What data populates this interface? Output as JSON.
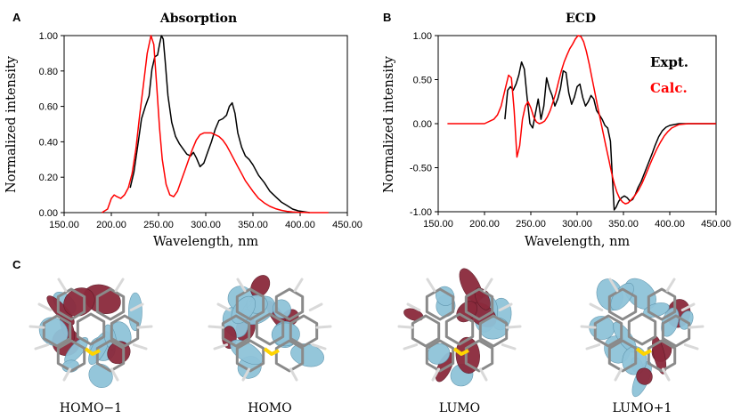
{
  "panel_letters": {
    "a": "A",
    "b": "B",
    "c": "C"
  },
  "chart_data": [
    {
      "type": "line",
      "title": "Absorption",
      "xlabel": "Wavelength, nm",
      "ylabel": "Normalized intensity",
      "xlim": [
        150,
        450
      ],
      "ylim": [
        0,
        1
      ],
      "xticks": [
        "150.00",
        "200.00",
        "250.00",
        "300.00",
        "350.00",
        "400.00",
        "450.00"
      ],
      "yticks": [
        "0.00",
        "0.20",
        "0.40",
        "0.60",
        "0.80",
        "1.00"
      ],
      "grid": false,
      "series": [
        {
          "color": "#000000",
          "x": [
            220,
            224,
            228,
            232,
            236,
            240,
            243,
            246,
            249,
            251,
            253,
            255,
            257,
            260,
            264,
            268,
            272,
            276,
            280,
            284,
            287,
            290,
            294,
            298,
            302,
            306,
            310,
            314,
            318,
            322,
            325,
            328,
            331,
            334,
            338,
            342,
            346,
            350,
            356,
            362,
            368,
            374,
            380,
            386,
            392,
            398,
            404,
            410
          ],
          "y": [
            0.14,
            0.23,
            0.38,
            0.53,
            0.6,
            0.66,
            0.81,
            0.88,
            0.89,
            0.95,
            1.0,
            0.98,
            0.86,
            0.66,
            0.51,
            0.43,
            0.39,
            0.36,
            0.33,
            0.32,
            0.34,
            0.31,
            0.26,
            0.28,
            0.34,
            0.4,
            0.47,
            0.52,
            0.53,
            0.55,
            0.6,
            0.62,
            0.56,
            0.45,
            0.37,
            0.32,
            0.3,
            0.27,
            0.21,
            0.17,
            0.12,
            0.09,
            0.06,
            0.04,
            0.02,
            0.01,
            0.005,
            0.0
          ]
        },
        {
          "color": "#ff0000",
          "x": [
            190,
            196,
            200,
            203,
            206,
            210,
            214,
            218,
            222,
            226,
            230,
            234,
            238,
            242,
            245,
            248,
            251,
            254,
            258,
            262,
            266,
            270,
            274,
            278,
            282,
            286,
            290,
            294,
            298,
            302,
            306,
            310,
            314,
            318,
            322,
            326,
            330,
            334,
            338,
            342,
            346,
            350,
            356,
            362,
            368,
            374,
            380,
            386,
            392,
            398,
            404,
            410,
            416,
            422,
            430
          ],
          "y": [
            0.0,
            0.02,
            0.08,
            0.1,
            0.09,
            0.08,
            0.1,
            0.14,
            0.22,
            0.36,
            0.55,
            0.72,
            0.9,
            1.0,
            0.95,
            0.72,
            0.48,
            0.3,
            0.16,
            0.1,
            0.09,
            0.12,
            0.18,
            0.24,
            0.3,
            0.36,
            0.41,
            0.44,
            0.45,
            0.45,
            0.45,
            0.44,
            0.43,
            0.41,
            0.38,
            0.34,
            0.3,
            0.26,
            0.22,
            0.18,
            0.15,
            0.12,
            0.08,
            0.055,
            0.035,
            0.022,
            0.013,
            0.007,
            0.004,
            0.002,
            0.001,
            0.0,
            0.0,
            0.0,
            0.0
          ]
        }
      ]
    },
    {
      "type": "line",
      "title": "ECD",
      "xlabel": "Wavelength, nm",
      "ylabel": "Normalized intensity",
      "xlim": [
        150,
        450
      ],
      "ylim": [
        -1,
        1
      ],
      "xticks": [
        "150.00",
        "200.00",
        "250.00",
        "300.00",
        "350.00",
        "400.00",
        "450.00"
      ],
      "yticks": [
        "-1.00",
        "-0.50",
        "0.00",
        "0.50",
        "1.00"
      ],
      "grid": false,
      "legend_position": "top-right",
      "series": [
        {
          "name": "Expt.",
          "color": "#000000",
          "x": [
            222,
            225,
            228,
            231,
            234,
            237,
            240,
            243,
            246,
            249,
            252,
            255,
            258,
            261,
            264,
            267,
            270,
            273,
            276,
            279,
            282,
            285,
            288,
            291,
            294,
            297,
            300,
            303,
            306,
            309,
            312,
            315,
            318,
            321,
            324,
            327,
            330,
            333,
            336,
            338,
            340,
            342,
            345,
            348,
            351,
            354,
            357,
            360,
            363,
            366,
            369,
            372,
            375,
            378,
            381,
            384,
            388,
            392,
            396,
            400,
            405,
            410,
            420,
            430,
            440,
            450
          ],
          "y": [
            0.05,
            0.38,
            0.42,
            0.38,
            0.45,
            0.55,
            0.7,
            0.62,
            0.3,
            0.0,
            -0.05,
            0.12,
            0.28,
            0.05,
            0.2,
            0.52,
            0.4,
            0.32,
            0.2,
            0.28,
            0.4,
            0.6,
            0.58,
            0.35,
            0.22,
            0.3,
            0.42,
            0.45,
            0.3,
            0.2,
            0.25,
            0.32,
            0.28,
            0.15,
            0.1,
            0.05,
            -0.02,
            -0.05,
            -0.2,
            -0.6,
            -0.98,
            -0.95,
            -0.88,
            -0.84,
            -0.82,
            -0.84,
            -0.88,
            -0.86,
            -0.8,
            -0.72,
            -0.66,
            -0.58,
            -0.5,
            -0.42,
            -0.34,
            -0.25,
            -0.15,
            -0.08,
            -0.04,
            -0.02,
            -0.01,
            0.0,
            0.0,
            0.0,
            0.0,
            0.0
          ]
        },
        {
          "name": "Calc.",
          "color": "#ff0000",
          "x": [
            160,
            180,
            200,
            210,
            214,
            218,
            222,
            226,
            229,
            232,
            235,
            238,
            241,
            244,
            247,
            250,
            253,
            256,
            259,
            262,
            265,
            268,
            271,
            274,
            277,
            280,
            283,
            286,
            289,
            292,
            295,
            298,
            301,
            304,
            307,
            310,
            313,
            316,
            319,
            322,
            325,
            328,
            331,
            334,
            337,
            340,
            343,
            346,
            349,
            352,
            355,
            358,
            362,
            366,
            370,
            374,
            378,
            382,
            386,
            390,
            394,
            398,
            402,
            406,
            410,
            420,
            430,
            440,
            450
          ],
          "y": [
            0.0,
            0.0,
            0.0,
            0.05,
            0.1,
            0.2,
            0.38,
            0.55,
            0.52,
            0.15,
            -0.38,
            -0.25,
            0.05,
            0.2,
            0.25,
            0.18,
            0.08,
            0.02,
            0.0,
            0.01,
            0.03,
            0.08,
            0.15,
            0.25,
            0.35,
            0.48,
            0.6,
            0.7,
            0.78,
            0.85,
            0.9,
            0.96,
            1.0,
            0.99,
            0.93,
            0.82,
            0.68,
            0.52,
            0.36,
            0.2,
            0.05,
            -0.1,
            -0.25,
            -0.4,
            -0.55,
            -0.68,
            -0.78,
            -0.85,
            -0.89,
            -0.91,
            -0.9,
            -0.87,
            -0.82,
            -0.76,
            -0.68,
            -0.58,
            -0.48,
            -0.38,
            -0.29,
            -0.21,
            -0.14,
            -0.09,
            -0.05,
            -0.03,
            -0.01,
            0.0,
            0.0,
            0.0,
            0.0
          ]
        }
      ]
    }
  ],
  "orbitals": [
    {
      "label": "HOMO−1"
    },
    {
      "label": "HOMO"
    },
    {
      "label": "LUMO"
    },
    {
      "label": "LUMO+1"
    }
  ],
  "colors": {
    "orbital_positive": "#8b2a3c",
    "orbital_negative": "#8fc3d9",
    "bond": "#8a8a8a",
    "sulfur": "#ffd400",
    "hydrogen": "#f2f2f2"
  }
}
